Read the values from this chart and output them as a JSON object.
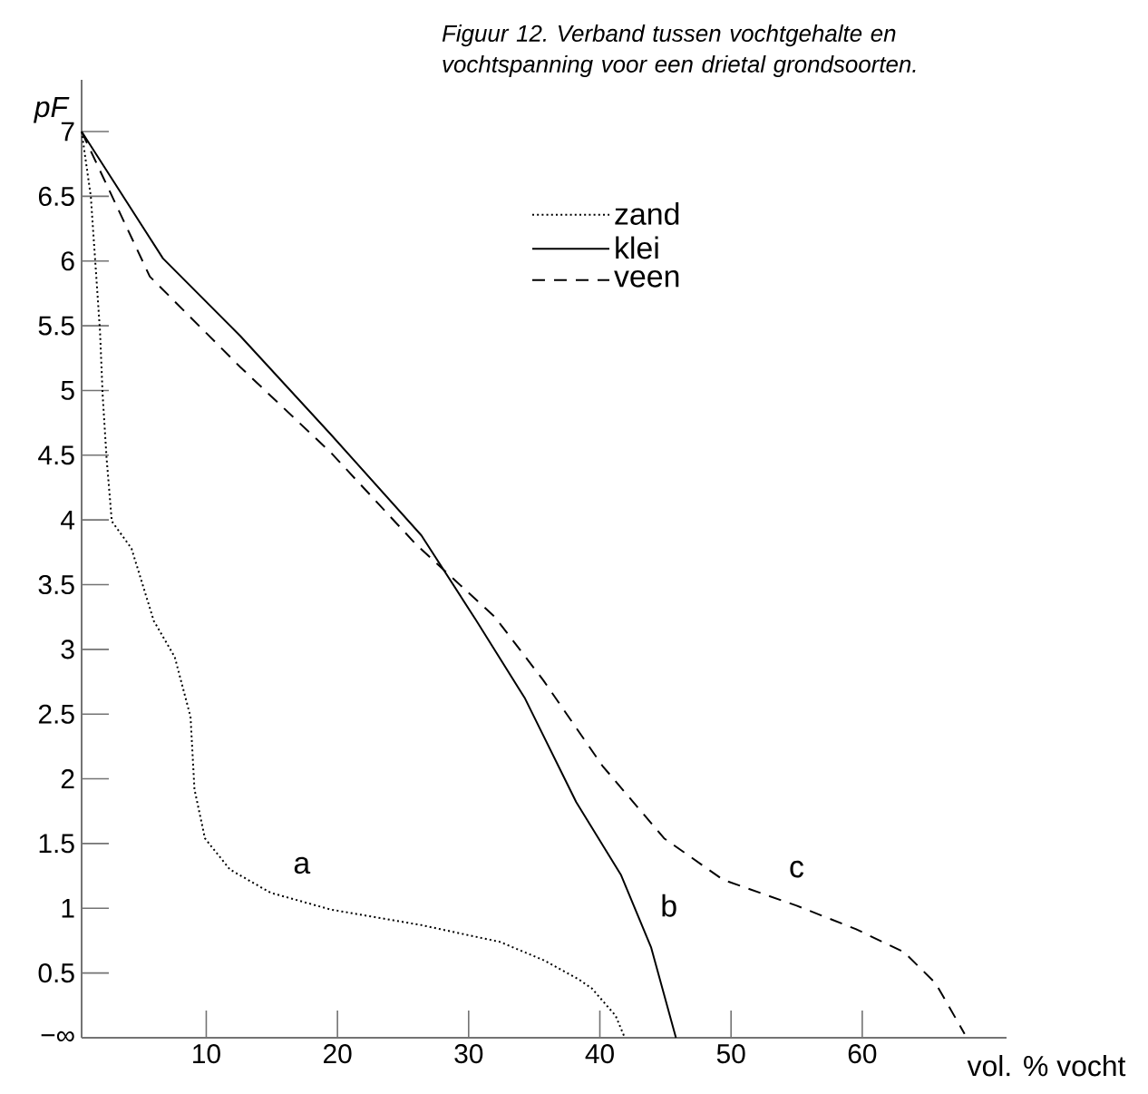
{
  "chart_data": {
    "type": "line",
    "title": "Figuur 12. Verband tussen vochtgehalte en vochtspanning voor een drietal grondsoorten.",
    "xlabel": "vol. % vocht",
    "ylabel": "pF",
    "xlim": [
      0.5,
      71
    ],
    "ylim": [
      0,
      7.4
    ],
    "xticks": [
      10,
      20,
      30,
      40,
      50,
      60
    ],
    "yticks": [
      {
        "value": 0,
        "label": "−∞"
      },
      0.5,
      1,
      1.5,
      2,
      2.5,
      3,
      3.5,
      4,
      4.5,
      5,
      5.5,
      6,
      6.5,
      7
    ],
    "legend": "top right",
    "series": [
      {
        "name": "zand",
        "color": "#000000",
        "line_style": "dotted",
        "x": [
          0.5,
          1.2,
          1.9,
          2.1,
          2.4,
          2.8,
          4.3,
          6.0,
          7.6,
          8.8,
          9.1,
          9.9,
          11.8,
          14.9,
          19.5,
          26.4,
          32.4,
          35.7,
          38.4,
          39.4,
          41.2,
          41.9
        ],
        "values": [
          7,
          6.5,
          5.46,
          4.97,
          4.48,
          3.99,
          3.78,
          3.22,
          2.94,
          2.48,
          1.92,
          1.54,
          1.3,
          1.12,
          0.99,
          0.87,
          0.74,
          0.6,
          0.45,
          0.38,
          0.17,
          0
        ]
      },
      {
        "name": "klei",
        "color": "#000000",
        "line_style": "solid",
        "x": [
          0.5,
          6.7,
          12.6,
          19.5,
          26.4,
          30.6,
          34.3,
          38.2,
          41.6,
          43.9,
          45.8
        ],
        "values": [
          7,
          6.02,
          5.42,
          4.66,
          3.88,
          3.22,
          2.62,
          1.82,
          1.26,
          0.7,
          0
        ]
      },
      {
        "name": "veen",
        "color": "#000000",
        "line_style": "dashed",
        "x": [
          0.5,
          5.7,
          12.6,
          19.5,
          26.0,
          32.0,
          35.7,
          40.2,
          44.9,
          49.4,
          55.0,
          59.5,
          63.2,
          65.6,
          67.8
        ],
        "values": [
          7,
          5.88,
          5.18,
          4.52,
          3.81,
          3.25,
          2.76,
          2.1,
          1.54,
          1.22,
          1.02,
          0.84,
          0.66,
          0.42,
          0.03
        ]
      }
    ],
    "annotations": [
      "a",
      "b",
      "c"
    ]
  }
}
